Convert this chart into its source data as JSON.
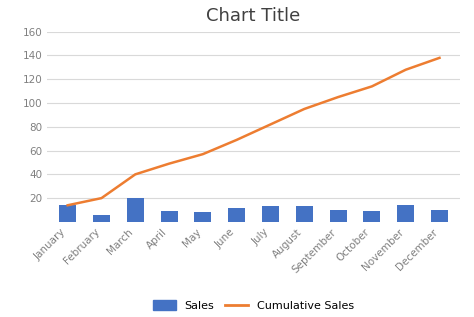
{
  "title": "Chart Title",
  "categories": [
    "January",
    "February",
    "March",
    "April",
    "May",
    "June",
    "July",
    "August",
    "September",
    "October",
    "November",
    "December"
  ],
  "sales": [
    14,
    6,
    20,
    9,
    8,
    12,
    13,
    13,
    10,
    9,
    14,
    10
  ],
  "cumulative_sales": [
    14,
    20,
    40,
    49,
    57,
    69,
    82,
    95,
    105,
    114,
    128,
    138
  ],
  "bar_color": "#4472C4",
  "line_color": "#ED7D31",
  "ylim": [
    0,
    160
  ],
  "yticks": [
    20,
    40,
    60,
    80,
    100,
    120,
    140,
    160
  ],
  "background_color": "#ffffff",
  "plot_bg_color": "#ffffff",
  "title_fontsize": 13,
  "legend_labels": [
    "Sales",
    "Cumulative Sales"
  ],
  "bar_width": 0.5,
  "grid_color": "#d9d9d9",
  "tick_color": "#808080",
  "tick_fontsize": 7.5,
  "label_fontsize": 7.5
}
